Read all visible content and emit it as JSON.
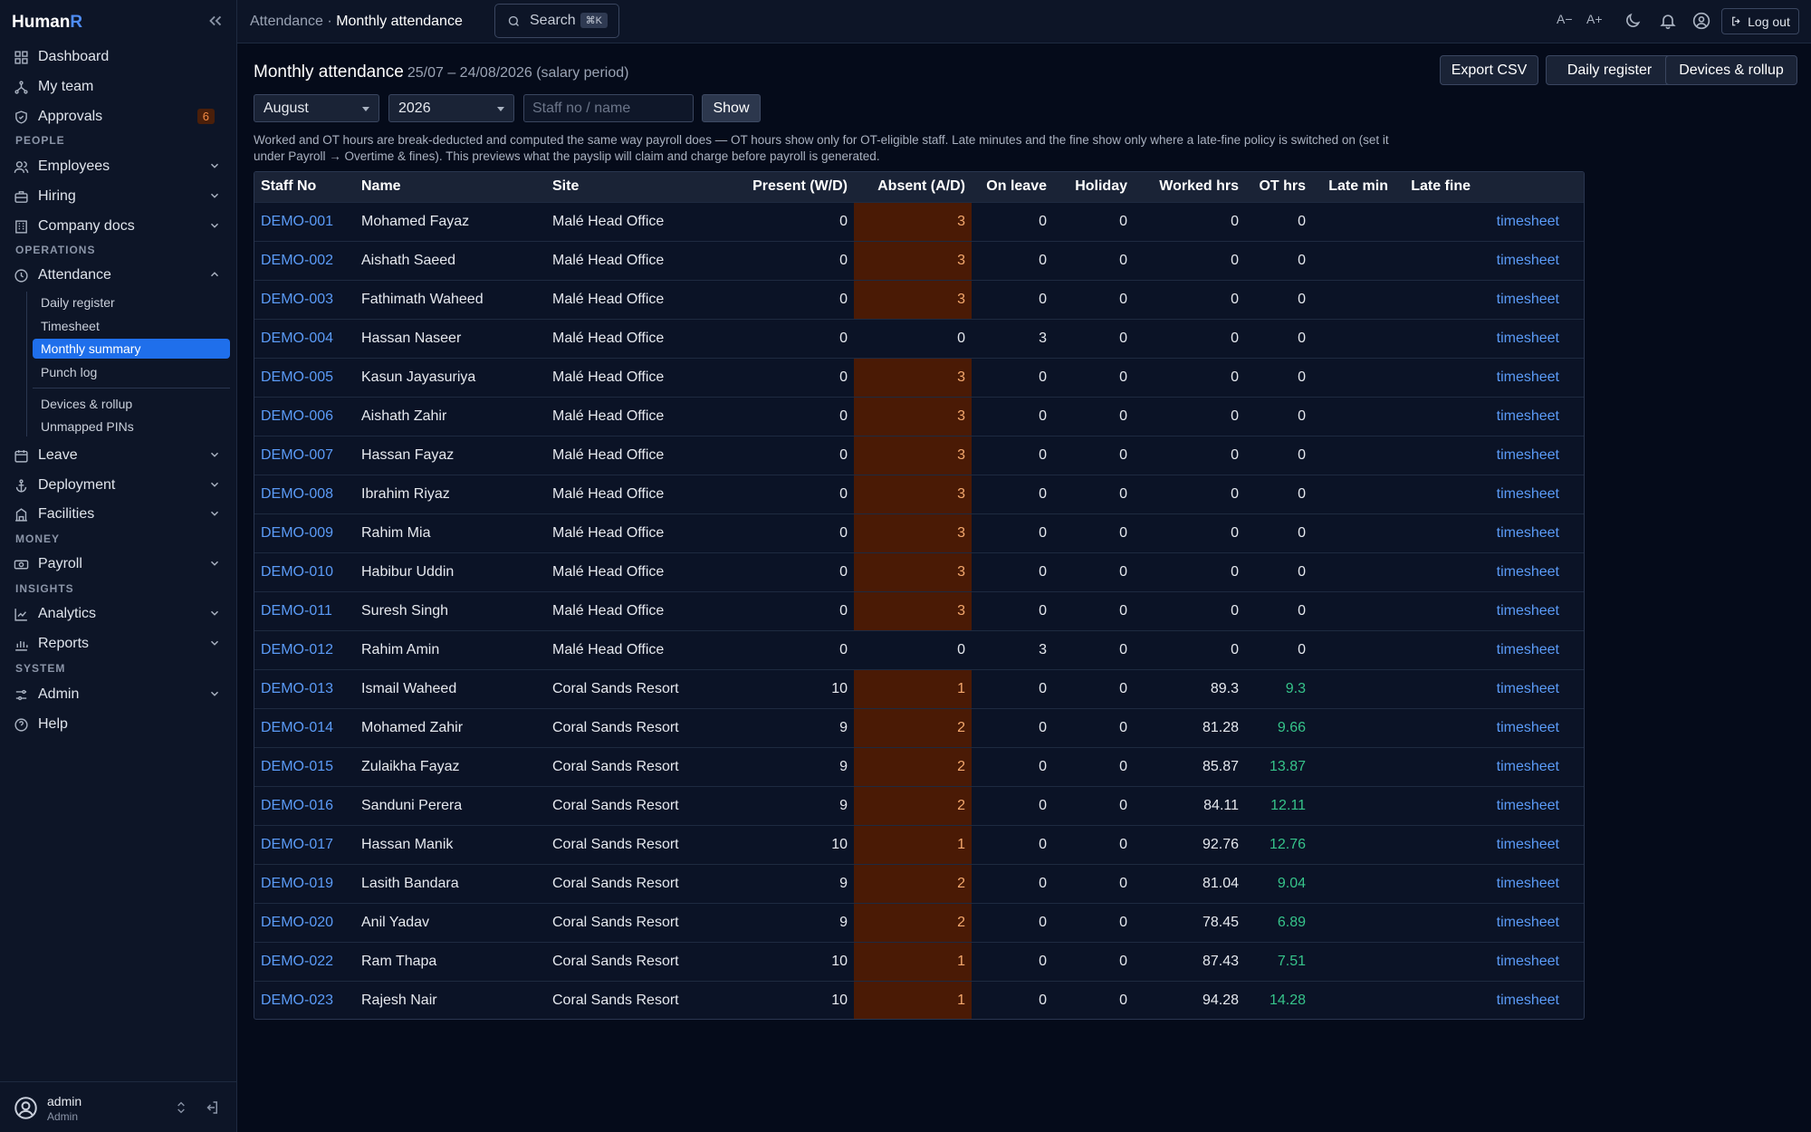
{
  "brand": {
    "name_main": "Human",
    "name_accent": "R"
  },
  "sidebar": {
    "dashboard": "Dashboard",
    "my_team": "My team",
    "approvals": "Approvals",
    "approvals_badge": "6",
    "section_people": "PEOPLE",
    "employees": "Employees",
    "hiring": "Hiring",
    "company_docs": "Company docs",
    "section_operations": "OPERATIONS",
    "attendance": "Attendance",
    "attendance_sub": {
      "daily_register": "Daily register",
      "timesheet": "Timesheet",
      "monthly_summary": "Monthly summary",
      "punch_log": "Punch log",
      "devices_rollup": "Devices & rollup",
      "unmapped_pins": "Unmapped PINs"
    },
    "leave": "Leave",
    "deployment": "Deployment",
    "facilities": "Facilities",
    "section_money": "MONEY",
    "payroll": "Payroll",
    "section_insights": "INSIGHTS",
    "analytics": "Analytics",
    "reports": "Reports",
    "section_system": "SYSTEM",
    "admin": "Admin",
    "help": "Help"
  },
  "user": {
    "name": "admin",
    "role": "Admin"
  },
  "topbar": {
    "crumb_parent": "Attendance",
    "crumb_sep": "·",
    "crumb_current": "Monthly attendance",
    "search_label": "Search",
    "search_kbd": "⌘K",
    "font_smaller": "A−",
    "font_larger": "A+",
    "logout": "Log out"
  },
  "page": {
    "title": "Monthly attendance",
    "period": "25/07 – 24/08/2026 (salary period)",
    "export_csv": "Export CSV",
    "daily_register": "Daily register",
    "devices_rollup": "Devices & rollup",
    "month": "August",
    "year": "2026",
    "staff_placeholder": "Staff no / name",
    "show": "Show",
    "notice": "Worked and OT hours are break-deducted and computed the same way payroll does — OT hours show only for OT-eligible staff. Late minutes and the fine show only where a late-fine policy is switched on (set it under Payroll → Overtime & fines). This previews what the payslip will claim and charge before payroll is generated."
  },
  "table": {
    "headers": {
      "staff_no": "Staff No",
      "name": "Name",
      "site": "Site",
      "present": "Present (W/D)",
      "absent": "Absent (A/D)",
      "on_leave": "On leave",
      "holiday": "Holiday",
      "worked_hrs": "Worked hrs",
      "ot_hrs": "OT hrs",
      "late_min": "Late min",
      "late_fine": "Late fine"
    },
    "link_label": "timesheet",
    "rows": [
      {
        "staff_no": "DEMO-001",
        "name": "Mohamed Fayaz",
        "site": "Malé Head Office",
        "present": "0",
        "absent": "3",
        "on_leave": "0",
        "holiday": "0",
        "worked": "0",
        "ot": "0",
        "late_min": "",
        "late_fine": ""
      },
      {
        "staff_no": "DEMO-002",
        "name": "Aishath Saeed",
        "site": "Malé Head Office",
        "present": "0",
        "absent": "3",
        "on_leave": "0",
        "holiday": "0",
        "worked": "0",
        "ot": "0",
        "late_min": "",
        "late_fine": ""
      },
      {
        "staff_no": "DEMO-003",
        "name": "Fathimath Waheed",
        "site": "Malé Head Office",
        "present": "0",
        "absent": "3",
        "on_leave": "0",
        "holiday": "0",
        "worked": "0",
        "ot": "0",
        "late_min": "",
        "late_fine": ""
      },
      {
        "staff_no": "DEMO-004",
        "name": "Hassan Naseer",
        "site": "Malé Head Office",
        "present": "0",
        "absent": "0",
        "on_leave": "3",
        "holiday": "0",
        "worked": "0",
        "ot": "0",
        "late_min": "",
        "late_fine": ""
      },
      {
        "staff_no": "DEMO-005",
        "name": "Kasun Jayasuriya",
        "site": "Malé Head Office",
        "present": "0",
        "absent": "3",
        "on_leave": "0",
        "holiday": "0",
        "worked": "0",
        "ot": "0",
        "late_min": "",
        "late_fine": ""
      },
      {
        "staff_no": "DEMO-006",
        "name": "Aishath Zahir",
        "site": "Malé Head Office",
        "present": "0",
        "absent": "3",
        "on_leave": "0",
        "holiday": "0",
        "worked": "0",
        "ot": "0",
        "late_min": "",
        "late_fine": ""
      },
      {
        "staff_no": "DEMO-007",
        "name": "Hassan Fayaz",
        "site": "Malé Head Office",
        "present": "0",
        "absent": "3",
        "on_leave": "0",
        "holiday": "0",
        "worked": "0",
        "ot": "0",
        "late_min": "",
        "late_fine": ""
      },
      {
        "staff_no": "DEMO-008",
        "name": "Ibrahim Riyaz",
        "site": "Malé Head Office",
        "present": "0",
        "absent": "3",
        "on_leave": "0",
        "holiday": "0",
        "worked": "0",
        "ot": "0",
        "late_min": "",
        "late_fine": ""
      },
      {
        "staff_no": "DEMO-009",
        "name": "Rahim Mia",
        "site": "Malé Head Office",
        "present": "0",
        "absent": "3",
        "on_leave": "0",
        "holiday": "0",
        "worked": "0",
        "ot": "0",
        "late_min": "",
        "late_fine": ""
      },
      {
        "staff_no": "DEMO-010",
        "name": "Habibur Uddin",
        "site": "Malé Head Office",
        "present": "0",
        "absent": "3",
        "on_leave": "0",
        "holiday": "0",
        "worked": "0",
        "ot": "0",
        "late_min": "",
        "late_fine": ""
      },
      {
        "staff_no": "DEMO-011",
        "name": "Suresh Singh",
        "site": "Malé Head Office",
        "present": "0",
        "absent": "3",
        "on_leave": "0",
        "holiday": "0",
        "worked": "0",
        "ot": "0",
        "late_min": "",
        "late_fine": ""
      },
      {
        "staff_no": "DEMO-012",
        "name": "Rahim Amin",
        "site": "Malé Head Office",
        "present": "0",
        "absent": "0",
        "on_leave": "3",
        "holiday": "0",
        "worked": "0",
        "ot": "0",
        "late_min": "",
        "late_fine": ""
      },
      {
        "staff_no": "DEMO-013",
        "name": "Ismail Waheed",
        "site": "Coral Sands Resort",
        "present": "10",
        "absent": "1",
        "on_leave": "0",
        "holiday": "0",
        "worked": "89.3",
        "ot": "9.3",
        "late_min": "",
        "late_fine": ""
      },
      {
        "staff_no": "DEMO-014",
        "name": "Mohamed Zahir",
        "site": "Coral Sands Resort",
        "present": "9",
        "absent": "2",
        "on_leave": "0",
        "holiday": "0",
        "worked": "81.28",
        "ot": "9.66",
        "late_min": "",
        "late_fine": ""
      },
      {
        "staff_no": "DEMO-015",
        "name": "Zulaikha Fayaz",
        "site": "Coral Sands Resort",
        "present": "9",
        "absent": "2",
        "on_leave": "0",
        "holiday": "0",
        "worked": "85.87",
        "ot": "13.87",
        "late_min": "",
        "late_fine": ""
      },
      {
        "staff_no": "DEMO-016",
        "name": "Sanduni Perera",
        "site": "Coral Sands Resort",
        "present": "9",
        "absent": "2",
        "on_leave": "0",
        "holiday": "0",
        "worked": "84.11",
        "ot": "12.11",
        "late_min": "",
        "late_fine": ""
      },
      {
        "staff_no": "DEMO-017",
        "name": "Hassan Manik",
        "site": "Coral Sands Resort",
        "present": "10",
        "absent": "1",
        "on_leave": "0",
        "holiday": "0",
        "worked": "92.76",
        "ot": "12.76",
        "late_min": "",
        "late_fine": ""
      },
      {
        "staff_no": "DEMO-019",
        "name": "Lasith Bandara",
        "site": "Coral Sands Resort",
        "present": "9",
        "absent": "2",
        "on_leave": "0",
        "holiday": "0",
        "worked": "81.04",
        "ot": "9.04",
        "late_min": "",
        "late_fine": ""
      },
      {
        "staff_no": "DEMO-020",
        "name": "Anil Yadav",
        "site": "Coral Sands Resort",
        "present": "9",
        "absent": "2",
        "on_leave": "0",
        "holiday": "0",
        "worked": "78.45",
        "ot": "6.89",
        "late_min": "",
        "late_fine": ""
      },
      {
        "staff_no": "DEMO-022",
        "name": "Ram Thapa",
        "site": "Coral Sands Resort",
        "present": "10",
        "absent": "1",
        "on_leave": "0",
        "holiday": "0",
        "worked": "87.43",
        "ot": "7.51",
        "late_min": "",
        "late_fine": ""
      },
      {
        "staff_no": "DEMO-023",
        "name": "Rajesh Nair",
        "site": "Coral Sands Resort",
        "present": "10",
        "absent": "1",
        "on_leave": "0",
        "holiday": "0",
        "worked": "94.28",
        "ot": "14.28",
        "late_min": "",
        "late_fine": ""
      }
    ]
  },
  "colors": {
    "accent": "#1f6feb",
    "link": "#5b9bf7",
    "absent_bg": "#4a1a05",
    "absent_text": "#f4a86d",
    "ot_positive": "#36c38a",
    "badge_bg": "#4a1f0a",
    "badge_text": "#f28b45"
  }
}
